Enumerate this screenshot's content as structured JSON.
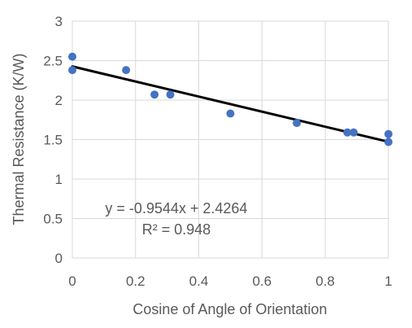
{
  "chart_data": {
    "type": "scatter",
    "xlabel": "Cosine of Angle of Orientation",
    "ylabel": "Thermal Resistance (K/W)",
    "xlim": [
      0,
      1
    ],
    "ylim": [
      0,
      3
    ],
    "x_ticks": [
      "0",
      "0.2",
      "0.4",
      "0.6",
      "0.8",
      "1"
    ],
    "y_ticks": [
      "0",
      "0.5",
      "1",
      "1.5",
      "2",
      "2.5",
      "3"
    ],
    "grid": true,
    "series": [
      {
        "points": [
          {
            "x": 0.0,
            "y": 2.55
          },
          {
            "x": 0.0,
            "y": 2.38
          },
          {
            "x": 0.17,
            "y": 2.38
          },
          {
            "x": 0.26,
            "y": 2.07
          },
          {
            "x": 0.31,
            "y": 2.07
          },
          {
            "x": 0.5,
            "y": 1.83
          },
          {
            "x": 0.71,
            "y": 1.71
          },
          {
            "x": 0.87,
            "y": 1.59
          },
          {
            "x": 0.89,
            "y": 1.59
          },
          {
            "x": 1.0,
            "y": 1.57
          },
          {
            "x": 1.0,
            "y": 1.47
          }
        ]
      }
    ],
    "trendline": {
      "slope": -0.9544,
      "intercept": 2.4264,
      "equation": "y = -0.9544x + 2.4264",
      "r_squared": "R² = 0.948"
    },
    "colors": {
      "marker": "#4472C4",
      "trendline": "#000000",
      "grid": "#D9D9D9",
      "text": "#595959"
    }
  }
}
